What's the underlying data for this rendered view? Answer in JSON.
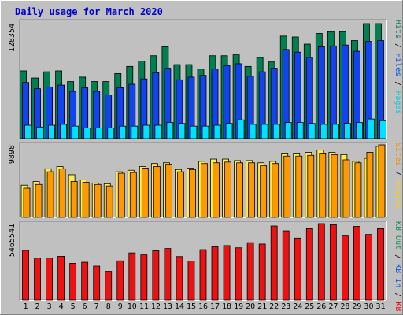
{
  "chart_data": [
    {
      "type": "bar",
      "title": "Daily usage for March 2020",
      "panel": "Pages / Files / Hits",
      "ymax_label": "128354",
      "categories": [
        "1",
        "2",
        "3",
        "4",
        "5",
        "6",
        "7",
        "8",
        "9",
        "10",
        "11",
        "12",
        "13",
        "14",
        "15",
        "16",
        "17",
        "18",
        "19",
        "20",
        "21",
        "22",
        "23",
        "24",
        "25",
        "26",
        "27",
        "28",
        "29",
        "30",
        "31"
      ],
      "weekend_days": [
        "7",
        "8",
        "14",
        "15",
        "21",
        "22",
        "28",
        "29"
      ],
      "legend": [
        {
          "label": "Pages",
          "color": "#00ccdd"
        },
        {
          "label": "Files",
          "color": "#0055ee"
        },
        {
          "label": "Hits",
          "color": "#007c55"
        }
      ],
      "series": [
        {
          "name": "Hits",
          "color": "#008050",
          "values": [
            76000,
            68000,
            75000,
            76000,
            64000,
            69000,
            64000,
            64000,
            73000,
            81000,
            87000,
            93000,
            103000,
            83000,
            83000,
            78000,
            93000,
            93000,
            94000,
            81000,
            91000,
            86000,
            115000,
            114000,
            106000,
            118000,
            120000,
            120000,
            110000,
            129000,
            129000
          ]
        },
        {
          "name": "Files",
          "color": "#1144ee",
          "values": [
            63000,
            56000,
            58000,
            60000,
            53000,
            57000,
            53000,
            49000,
            57000,
            61000,
            67000,
            74000,
            79000,
            66000,
            69000,
            71000,
            78000,
            82000,
            84000,
            70000,
            75000,
            79000,
            100000,
            97000,
            91000,
            103000,
            104000,
            105000,
            98000,
            109000,
            110000
          ]
        },
        {
          "name": "Pages",
          "color": "#00e0ff",
          "values": [
            15000,
            13000,
            15000,
            16000,
            14000,
            12000,
            12000,
            12000,
            14000,
            14000,
            15000,
            15000,
            18000,
            17000,
            14000,
            14000,
            15000,
            17000,
            21000,
            16000,
            16000,
            16000,
            18000,
            18000,
            17000,
            16000,
            16000,
            17000,
            18000,
            22000,
            20000
          ]
        }
      ]
    },
    {
      "type": "bar",
      "panel": "Visits / Sites",
      "ymax_label": "9898",
      "categories": [
        "1",
        "2",
        "3",
        "4",
        "5",
        "6",
        "7",
        "8",
        "9",
        "10",
        "11",
        "12",
        "13",
        "14",
        "15",
        "16",
        "17",
        "18",
        "19",
        "20",
        "21",
        "22",
        "23",
        "24",
        "25",
        "26",
        "27",
        "28",
        "29",
        "30",
        "31"
      ],
      "legend": [
        {
          "label": "Visits",
          "color": "#ffcc00"
        },
        {
          "label": "Sites",
          "color": "#ff8800"
        }
      ],
      "series": [
        {
          "name": "Visits",
          "color": "#ffee44",
          "values": [
            4300,
            4800,
            6500,
            6800,
            5700,
            5000,
            4600,
            4500,
            6100,
            6300,
            6800,
            7200,
            7300,
            6400,
            6600,
            7500,
            7800,
            7800,
            7600,
            7600,
            7300,
            7500,
            8600,
            8600,
            8700,
            9000,
            8700,
            8400,
            7500,
            7900,
            9500
          ]
        },
        {
          "name": "Sites",
          "color": "#ff9900",
          "values": [
            3900,
            4400,
            6100,
            6500,
            4800,
            4700,
            4400,
            4200,
            5900,
            6000,
            6600,
            6800,
            7100,
            6100,
            6400,
            7200,
            7300,
            7400,
            7300,
            7300,
            6900,
            7200,
            8200,
            8200,
            8300,
            8600,
            8400,
            7700,
            7300,
            8700,
            9700
          ]
        }
      ]
    },
    {
      "type": "bar",
      "panel": "KB F / KB In / KB Out",
      "ymax_label": "5465541",
      "categories": [
        "1",
        "2",
        "3",
        "4",
        "5",
        "6",
        "7",
        "8",
        "9",
        "10",
        "11",
        "12",
        "13",
        "14",
        "15",
        "16",
        "17",
        "18",
        "19",
        "20",
        "21",
        "22",
        "23",
        "24",
        "25",
        "26",
        "27",
        "28",
        "29",
        "30",
        "31"
      ],
      "legend": [
        {
          "label": "KB F",
          "color": "#ff0000"
        },
        {
          "label": "KB In",
          "color": "#0055ee"
        },
        {
          "label": "KB Out",
          "color": "#009955"
        }
      ],
      "series": [
        {
          "name": "KB F",
          "color": "#ee1111",
          "values": [
            3550000,
            3000000,
            3000000,
            3130000,
            2620000,
            2700000,
            2420000,
            2050000,
            2800000,
            3370000,
            3230000,
            3520000,
            3680000,
            3110000,
            2790000,
            3600000,
            3800000,
            3890000,
            3730000,
            4100000,
            4000000,
            5290000,
            4950000,
            4430000,
            5100000,
            5460000,
            5380000,
            4580000,
            5260000,
            4690000,
            5100000
          ]
        }
      ]
    }
  ]
}
